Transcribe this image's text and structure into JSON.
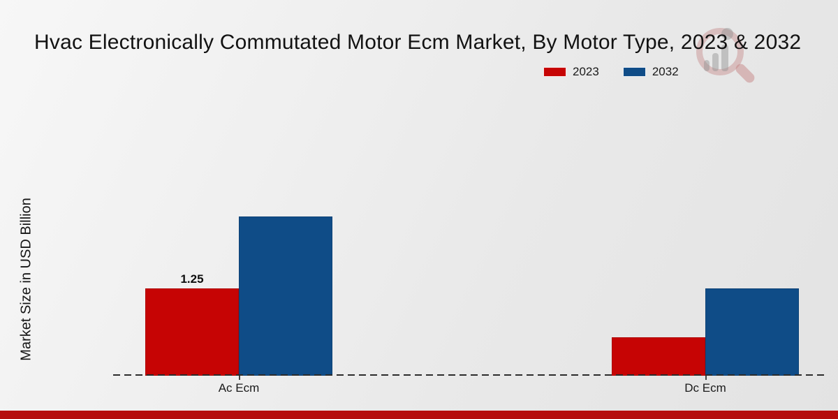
{
  "title": "Hvac Electronically Commutated Motor Ecm Market, By Motor Type, 2023 & 2032",
  "y_axis_label": "Market Size in USD Billion",
  "legend": {
    "items": [
      {
        "label": "2023",
        "color": "#c60404"
      },
      {
        "label": "2032",
        "color": "#0f4c87"
      }
    ]
  },
  "chart_data": {
    "type": "bar",
    "categories": [
      "Ac Ecm",
      "Dc Ecm"
    ],
    "series": [
      {
        "name": "2023",
        "color": "#c60404",
        "values": [
          1.25,
          0.55
        ],
        "value_labels": [
          "1.25",
          ""
        ]
      },
      {
        "name": "2032",
        "color": "#0f4c87",
        "values": [
          2.28,
          1.25
        ],
        "value_labels": [
          "",
          ""
        ]
      }
    ],
    "title": "Hvac Electronically Commutated Motor Ecm Market, By Motor Type, 2023 & 2032",
    "xlabel": "",
    "ylabel": "Market Size in USD Billion",
    "ylim": [
      0,
      2.6
    ],
    "grid": false,
    "legend_position": "top-right",
    "baseline_style": "dashed",
    "y_ticks_visible": false
  },
  "watermark": {
    "icon": "magnifier-bar-chart-logo"
  },
  "footer": {
    "color": "#b50d0d"
  }
}
